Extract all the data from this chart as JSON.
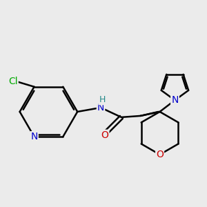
{
  "background_color": "#ebebeb",
  "bond_color": "#000000",
  "bond_width": 1.8,
  "atom_colors": {
    "N": "#0000cc",
    "O": "#cc0000",
    "Cl": "#00aa00",
    "H": "#228888",
    "C": "#000000"
  },
  "font_size": 10,
  "fig_size": [
    3.0,
    3.0
  ],
  "dpi": 100
}
